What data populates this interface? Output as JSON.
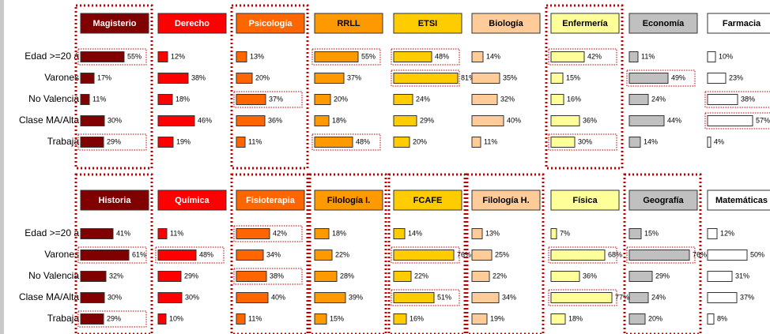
{
  "categories": [
    "Edad >=20 á",
    "Varones",
    "No Valencia",
    "Clase MA/Alta",
    "Trabaja"
  ],
  "chart_data": [
    {
      "type": "bar",
      "title": "Magisterio",
      "color": "#800000",
      "values": [
        55,
        17,
        11,
        30,
        29
      ],
      "value_labels": [
        "55%",
        "17%",
        "11%",
        "30%",
        "29%"
      ],
      "framed": true,
      "highlight": [
        0,
        4
      ]
    },
    {
      "type": "bar",
      "title": "Derecho",
      "color": "#ff0000",
      "values": [
        12,
        38,
        18,
        46,
        19
      ],
      "value_labels": [
        "12%",
        "38%",
        "18%",
        "46%",
        "19%"
      ],
      "framed": false,
      "highlight": []
    },
    {
      "type": "bar",
      "title": "Psicología",
      "color": "#ff6600",
      "values": [
        13,
        20,
        37,
        36,
        11
      ],
      "value_labels": [
        "13%",
        "20%",
        "37%",
        "36%",
        "11%"
      ],
      "framed": true,
      "highlight": [
        2
      ]
    },
    {
      "type": "bar",
      "title": "RRLL",
      "color": "#ff9900",
      "values": [
        55,
        37,
        20,
        18,
        48
      ],
      "value_labels": [
        "55%",
        "37%",
        "20%",
        "18%",
        "48%"
      ],
      "framed": false,
      "highlight": [
        0,
        4
      ]
    },
    {
      "type": "bar",
      "title": "ETSI",
      "color": "#ffcc00",
      "values": [
        48,
        81,
        24,
        29,
        20
      ],
      "value_labels": [
        "48%",
        "81%",
        "24%",
        "29%",
        "20%"
      ],
      "framed": false,
      "highlight": [
        0,
        1
      ]
    },
    {
      "type": "bar",
      "title": "Biología",
      "color": "#ffcc99",
      "values": [
        14,
        35,
        32,
        40,
        11
      ],
      "value_labels": [
        "14%",
        "35%",
        "32%",
        "40%",
        "11%"
      ],
      "framed": false,
      "highlight": []
    },
    {
      "type": "bar",
      "title": "Enfermería",
      "color": "#ffff99",
      "values": [
        42,
        15,
        16,
        36,
        30
      ],
      "value_labels": [
        "42%",
        "15%",
        "16%",
        "36%",
        "30%"
      ],
      "framed": true,
      "highlight": [
        0,
        4
      ]
    },
    {
      "type": "bar",
      "title": "Economía",
      "color": "#c0c0c0",
      "values": [
        11,
        49,
        24,
        44,
        14
      ],
      "value_labels": [
        "11%",
        "49%",
        "24%",
        "44%",
        "14%"
      ],
      "framed": false,
      "highlight": [
        1
      ]
    },
    {
      "type": "bar",
      "title": "Farmacia",
      "color": "#ffffff",
      "values": [
        10,
        23,
        38,
        57,
        4
      ],
      "value_labels": [
        "10%",
        "23%",
        "38%",
        "57%",
        "4%"
      ],
      "framed": false,
      "highlight": [
        2,
        3
      ]
    },
    {
      "type": "bar",
      "title": "Historia",
      "color": "#800000",
      "values": [
        41,
        61,
        32,
        30,
        29
      ],
      "value_labels": [
        "41%",
        "61%",
        "32%",
        "30%",
        "29%"
      ],
      "framed": true,
      "highlight": [
        1,
        4
      ]
    },
    {
      "type": "bar",
      "title": "Química",
      "color": "#ff0000",
      "values": [
        11,
        48,
        29,
        30,
        10
      ],
      "value_labels": [
        "11%",
        "48%",
        "29%",
        "30%",
        "10%"
      ],
      "framed": false,
      "highlight": [
        1
      ]
    },
    {
      "type": "bar",
      "title": "Fisioterapia",
      "color": "#ff6600",
      "values": [
        42,
        34,
        38,
        40,
        11
      ],
      "value_labels": [
        "42%",
        "34%",
        "38%",
        "40%",
        "11%"
      ],
      "framed": true,
      "highlight": [
        0,
        2
      ]
    },
    {
      "type": "bar",
      "title": "Filología I.",
      "color": "#ff9900",
      "values": [
        18,
        22,
        28,
        39,
        15
      ],
      "value_labels": [
        "18%",
        "22%",
        "28%",
        "39%",
        "15%"
      ],
      "framed": true,
      "highlight": []
    },
    {
      "type": "bar",
      "title": "FCAFE",
      "color": "#ffcc00",
      "values": [
        14,
        76,
        22,
        51,
        16
      ],
      "value_labels": [
        "14%",
        "76%",
        "22%",
        "51%",
        "16%"
      ],
      "framed": true,
      "highlight": [
        1,
        3
      ]
    },
    {
      "type": "bar",
      "title": "Filología H.",
      "color": "#ffcc99",
      "values": [
        13,
        25,
        22,
        34,
        19
      ],
      "value_labels": [
        "13%",
        "25%",
        "22%",
        "34%",
        "19%"
      ],
      "framed": true,
      "highlight": []
    },
    {
      "type": "bar",
      "title": "Física",
      "color": "#ffff99",
      "values": [
        7,
        68,
        36,
        77,
        18
      ],
      "value_labels": [
        "7%",
        "68%",
        "36%",
        "77%",
        "18%"
      ],
      "framed": false,
      "highlight": [
        1,
        3
      ]
    },
    {
      "type": "bar",
      "title": "Geografía",
      "color": "#c0c0c0",
      "values": [
        15,
        76,
        29,
        24,
        20
      ],
      "value_labels": [
        "15%",
        "76%",
        "29%",
        "24%",
        "20%"
      ],
      "framed": true,
      "highlight": [
        1
      ]
    },
    {
      "type": "bar",
      "title": "Matemáticas",
      "color": "#ffffff",
      "values": [
        12,
        50,
        31,
        37,
        8
      ],
      "value_labels": [
        "12%",
        "50%",
        "31%",
        "37%",
        "8%"
      ],
      "framed": false,
      "highlight": []
    }
  ]
}
